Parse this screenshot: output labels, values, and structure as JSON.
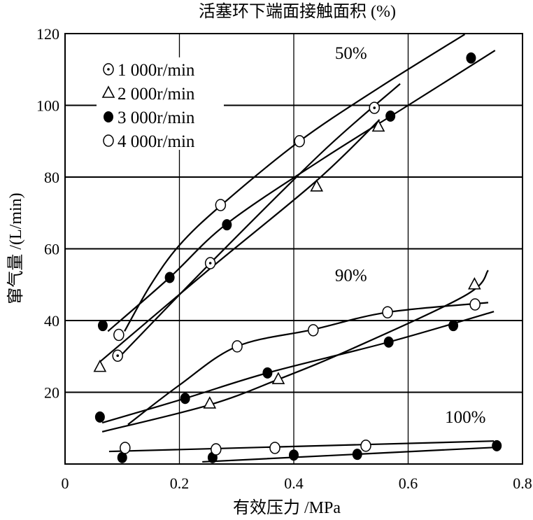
{
  "chart_data": {
    "type": "scatter",
    "title": "活塞环下端面接触面积 (%)",
    "xlabel": "有效压力 /MPa",
    "ylabel": "窜气量 /(L/min)",
    "xlim": [
      0,
      0.8
    ],
    "ylim": [
      0,
      120
    ],
    "xticks": [
      0,
      0.2,
      0.4,
      0.6,
      0.8
    ],
    "xtick_labels": [
      "0",
      "0.2",
      "0.4",
      "0.6",
      "0.8"
    ],
    "yticks": [
      20,
      40,
      60,
      80,
      100,
      120
    ],
    "ytick_labels": [
      "20",
      "40",
      "60",
      "80",
      "100",
      "120"
    ],
    "grid": true,
    "legend_placement": "top-left",
    "legend": [
      {
        "marker": "dotted-circle",
        "label": "1 000r/min"
      },
      {
        "marker": "triangle",
        "label": "2 000r/min"
      },
      {
        "marker": "filled-circle",
        "label": "3 000r/min"
      },
      {
        "marker": "open-circle",
        "label": "4 000r/min"
      }
    ],
    "annotations": [
      {
        "text": "50%",
        "x": 0.5,
        "y": 113
      },
      {
        "text": "90%",
        "x": 0.5,
        "y": 51
      },
      {
        "text": "100%",
        "x": 0.7,
        "y": 11.5
      }
    ],
    "series": [
      {
        "group": "50%",
        "name": "1 000r/min",
        "marker": "dotted-circle",
        "points": [
          [
            0.092,
            30.2
          ],
          [
            0.254,
            56
          ],
          [
            0.541,
            99.3
          ]
        ],
        "fit": [
          [
            0.09,
            29
          ],
          [
            0.254,
            56
          ],
          [
            0.45,
            87
          ],
          [
            0.586,
            106
          ]
        ]
      },
      {
        "group": "50%",
        "name": "2 000r/min",
        "marker": "triangle",
        "points": [
          [
            0.061,
            27
          ],
          [
            0.44,
            77.3
          ],
          [
            0.548,
            94
          ]
        ],
        "fit": [
          [
            0.061,
            28.5
          ],
          [
            0.25,
            54
          ],
          [
            0.44,
            79
          ],
          [
            0.55,
            96
          ]
        ]
      },
      {
        "group": "50%",
        "name": "3 000r/min",
        "marker": "filled-circle",
        "points": [
          [
            0.066,
            38.6
          ],
          [
            0.183,
            52
          ],
          [
            0.283,
            66.7
          ],
          [
            0.569,
            97
          ],
          [
            0.71,
            113.2
          ]
        ],
        "fit": [
          [
            0.075,
            37
          ],
          [
            0.183,
            52
          ],
          [
            0.283,
            67
          ],
          [
            0.45,
            85
          ],
          [
            0.6,
            100
          ],
          [
            0.752,
            115.3
          ]
        ]
      },
      {
        "group": "50%",
        "name": "4 000r/min",
        "marker": "open-circle",
        "points": [
          [
            0.094,
            36
          ],
          [
            0.272,
            72.2
          ],
          [
            0.41,
            90
          ]
        ],
        "fit": [
          [
            0.104,
            37
          ],
          [
            0.15,
            50
          ],
          [
            0.2,
            61
          ],
          [
            0.272,
            72
          ],
          [
            0.41,
            90
          ],
          [
            0.55,
            105
          ],
          [
            0.699,
            119.8
          ]
        ]
      },
      {
        "group": "90%",
        "name": "2 000r/min",
        "marker": "triangle",
        "points": [
          [
            0.253,
            16.8
          ],
          [
            0.373,
            23.6
          ],
          [
            0.716,
            50
          ]
        ],
        "fit": [
          [
            0.065,
            9
          ],
          [
            0.253,
            16.5
          ],
          [
            0.373,
            23.6
          ],
          [
            0.5,
            32
          ],
          [
            0.7,
            47
          ],
          [
            0.74,
            54
          ]
        ]
      },
      {
        "group": "90%",
        "name": "3 000r/min",
        "marker": "filled-circle",
        "points": [
          [
            0.061,
            13.1
          ],
          [
            0.21,
            18.3
          ],
          [
            0.354,
            25.4
          ],
          [
            0.566,
            34
          ],
          [
            0.679,
            38.6
          ]
        ],
        "fit": [
          [
            0.065,
            11.5
          ],
          [
            0.21,
            18.3
          ],
          [
            0.354,
            25.4
          ],
          [
            0.566,
            34
          ],
          [
            0.75,
            42.5
          ]
        ]
      },
      {
        "group": "90%",
        "name": "4 000r/min",
        "marker": "open-circle",
        "points": [
          [
            0.301,
            32.8
          ],
          [
            0.434,
            37.3
          ],
          [
            0.564,
            42.3
          ],
          [
            0.717,
            44.5
          ]
        ],
        "fit": [
          [
            0.11,
            11
          ],
          [
            0.2,
            22
          ],
          [
            0.301,
            32.8
          ],
          [
            0.434,
            37.5
          ],
          [
            0.564,
            42.3
          ],
          [
            0.74,
            45
          ]
        ]
      },
      {
        "group": "100%",
        "name": "3 000r/min",
        "marker": "filled-circle",
        "points": [
          [
            0.1,
            1.8
          ],
          [
            0.258,
            1.8
          ],
          [
            0.4,
            2.5
          ],
          [
            0.511,
            2.7
          ],
          [
            0.755,
            5.1
          ]
        ],
        "fit": [
          [
            0.24,
            0.6
          ],
          [
            0.76,
            4.7
          ]
        ]
      },
      {
        "group": "100%",
        "name": "4 000r/min",
        "marker": "open-circle",
        "points": [
          [
            0.105,
            4.5
          ],
          [
            0.264,
            4.1
          ],
          [
            0.367,
            4.5
          ],
          [
            0.526,
            5.1
          ]
        ],
        "fit": [
          [
            0.077,
            3.5
          ],
          [
            0.75,
            6.4
          ]
        ]
      }
    ]
  }
}
